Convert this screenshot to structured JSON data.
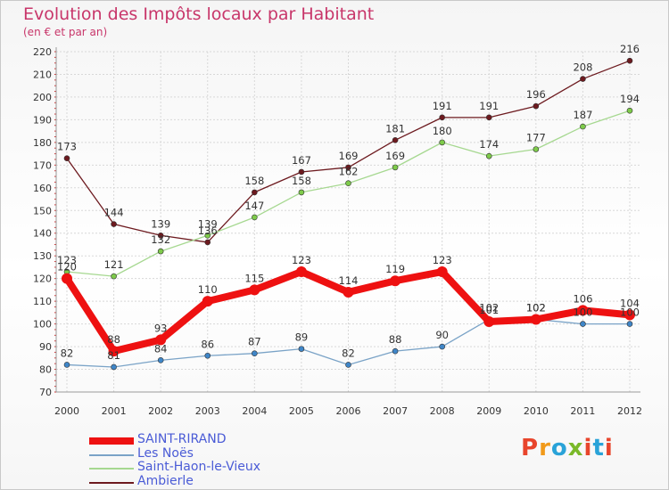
{
  "title": "Evolution des Impôts locaux par Habitant",
  "subtitle": "(en € et par an)",
  "brand": "Proxiti",
  "chart_data": {
    "type": "line",
    "title": "Evolution des Impôts locaux par Habitant",
    "subtitle": "(en € et par an)",
    "xlabel": "",
    "ylabel": "",
    "x": [
      "2000",
      "2001",
      "2002",
      "2003",
      "2004",
      "2005",
      "2006",
      "2007",
      "2008",
      "2009",
      "2010",
      "2011",
      "2012"
    ],
    "yticks": [
      "70",
      "80",
      "90",
      "100",
      "110",
      "120",
      "130",
      "140",
      "150",
      "160",
      "170",
      "180",
      "190",
      "200",
      "210",
      "220"
    ],
    "ylim": [
      70,
      220
    ],
    "grid": true,
    "legend": "bottom-left",
    "series": [
      {
        "name": "Ambierle",
        "color": "#6d1a1f",
        "marker": "#6d1a1f",
        "values": [
          173,
          144,
          139,
          136,
          158,
          167,
          169,
          181,
          191,
          191,
          196,
          208,
          216
        ],
        "labels": [
          "173",
          "144",
          "139",
          "136",
          "158",
          "167",
          "169",
          "181",
          "191",
          "191",
          "196",
          "208",
          "216"
        ]
      },
      {
        "name": "Saint-Haon-le-Vieux",
        "color": "#a6d890",
        "marker": "#7ecb4a",
        "values": [
          123,
          121,
          132,
          139,
          147,
          158,
          162,
          169,
          180,
          174,
          177,
          187,
          194
        ],
        "labels": [
          "123",
          "121",
          "132",
          "139",
          "147",
          "158",
          "162",
          "169",
          "180",
          "174",
          "177",
          "187",
          "194"
        ]
      },
      {
        "name": "Les Noës",
        "color": "#7aa3c7",
        "marker": "#3f86c8",
        "values": [
          82,
          81,
          84,
          86,
          87,
          89,
          82,
          88,
          90,
          102,
          102,
          100,
          100
        ],
        "labels": [
          "82",
          "81",
          "84",
          "86",
          "87",
          "89",
          "82",
          "88",
          "90",
          "102",
          "102",
          "100",
          "100"
        ]
      },
      {
        "name": "SAINT-RIRAND",
        "color": "#ee1111",
        "marker": "#ee1111",
        "values": [
          120,
          88,
          93,
          110,
          115,
          123,
          114,
          119,
          123,
          101,
          102,
          106,
          104
        ],
        "labels": [
          "120",
          "88",
          "93",
          "110",
          "115",
          "123",
          "114",
          "119",
          "123",
          "101",
          "102",
          "106",
          "104"
        ]
      }
    ],
    "legend_order": [
      "SAINT-RIRAND",
      "Les Noës",
      "Saint-Haon-le-Vieux",
      "Ambierle"
    ]
  }
}
